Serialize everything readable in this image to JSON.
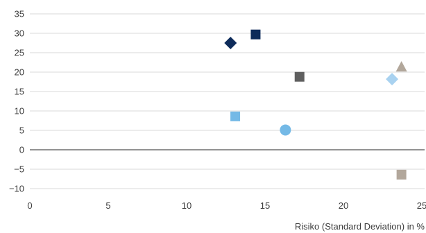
{
  "chart_data": {
    "type": "scatter",
    "title": "",
    "xlabel": "Risiko (Standard Deviation) in %",
    "ylabel": "",
    "xlim": [
      0,
      25
    ],
    "ylim": [
      -10,
      35
    ],
    "x_ticks": [
      "0",
      "5",
      "10",
      "15",
      "20",
      "25"
    ],
    "y_ticks": [
      "35",
      "30",
      "25",
      "20",
      "15",
      "10",
      "5",
      "0",
      "−5",
      "−10"
    ],
    "grid": "horizontal",
    "legend": "none",
    "points": [
      {
        "x": 12.8,
        "y": 27.5,
        "marker": "diamond",
        "color": "#0d2b5a"
      },
      {
        "x": 14.4,
        "y": 29.7,
        "marker": "square",
        "color": "#0d2b5a"
      },
      {
        "x": 17.2,
        "y": 18.8,
        "marker": "square",
        "color": "#5f5f5f"
      },
      {
        "x": 23.7,
        "y": 21.4,
        "marker": "triangle",
        "color": "#b2a79b"
      },
      {
        "x": 23.1,
        "y": 18.2,
        "marker": "diamond",
        "color": "#a9d2f0"
      },
      {
        "x": 13.1,
        "y": 8.6,
        "marker": "square",
        "color": "#74b9e6"
      },
      {
        "x": 16.3,
        "y": 5.1,
        "marker": "circle",
        "color": "#74b9e6"
      },
      {
        "x": 23.7,
        "y": -6.4,
        "marker": "square",
        "color": "#b2a79b"
      }
    ]
  }
}
